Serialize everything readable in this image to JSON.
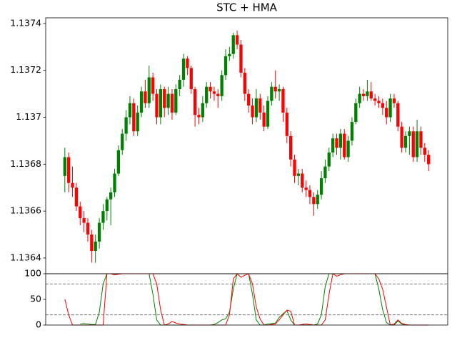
{
  "chart_data": [
    {
      "type": "candlestick",
      "title": "STC + HMA",
      "up_color": "green",
      "down_color": "red",
      "open": [
        1.13675,
        1.13683,
        1.13672,
        1.1367,
        1.13662,
        1.13657,
        1.13655,
        1.1365,
        1.13643,
        1.13647,
        1.13655,
        1.1366,
        1.13665,
        1.13668,
        1.13676,
        1.13686,
        1.13693,
        1.137,
        1.13706,
        1.13694,
        1.13702,
        1.13711,
        1.13706,
        1.13717,
        1.1371,
        1.137,
        1.13712,
        1.13704,
        1.1371,
        1.13702,
        1.13712,
        1.13716,
        1.13725,
        1.13721,
        1.13712,
        1.13701,
        1.137,
        1.13706,
        1.13713,
        1.13711,
        1.1371,
        1.13709,
        1.13718,
        1.13726,
        1.13727,
        1.13735,
        1.13731,
        1.13719,
        1.1371,
        1.13705,
        1.137,
        1.13708,
        1.13702,
        1.13696,
        1.13707,
        1.13713,
        1.13711,
        1.13712,
        1.13702,
        1.13692,
        1.13682,
        1.13675,
        1.13676,
        1.1367,
        1.13669,
        1.13666,
        1.13663,
        1.13667,
        1.13674,
        1.13679,
        1.13685,
        1.13691,
        1.13687,
        1.13693,
        1.13683,
        1.1369,
        1.13698,
        1.13706,
        1.1371,
        1.13709,
        1.13711,
        1.13708,
        1.13707,
        1.13706,
        1.13704,
        1.137,
        1.13708,
        1.13706,
        1.13696,
        1.13687,
        1.13692,
        1.13694,
        1.13683,
        1.13694,
        1.13687,
        1.13684
      ],
      "high": [
        1.13687,
        1.13685,
        1.13679,
        1.13672,
        1.13664,
        1.1366,
        1.13657,
        1.13652,
        1.1365,
        1.13657,
        1.13663,
        1.13666,
        1.1367,
        1.13678,
        1.13688,
        1.13695,
        1.13703,
        1.13709,
        1.13708,
        1.13705,
        1.13713,
        1.13716,
        1.13722,
        1.13719,
        1.13712,
        1.13714,
        1.13713,
        1.13713,
        1.13712,
        1.13714,
        1.13718,
        1.13727,
        1.13726,
        1.13722,
        1.13713,
        1.13704,
        1.13709,
        1.13715,
        1.13715,
        1.13713,
        1.13712,
        1.1372,
        1.13729,
        1.1373,
        1.13736,
        1.13737,
        1.13733,
        1.13721,
        1.13712,
        1.13708,
        1.13712,
        1.1371,
        1.13705,
        1.13709,
        1.13715,
        1.1372,
        1.13714,
        1.13713,
        1.13704,
        1.13694,
        1.13684,
        1.13678,
        1.13678,
        1.13673,
        1.13671,
        1.13668,
        1.13669,
        1.13677,
        1.13682,
        1.13687,
        1.13693,
        1.13693,
        1.13695,
        1.13695,
        1.13692,
        1.137,
        1.13708,
        1.13713,
        1.13712,
        1.13716,
        1.13715,
        1.1371,
        1.13709,
        1.13708,
        1.13707,
        1.1371,
        1.1371,
        1.13707,
        1.13698,
        1.13694,
        1.13696,
        1.13696,
        1.13699,
        1.13696,
        1.13689,
        1.13686
      ],
      "low": [
        1.13668,
        1.13668,
        1.13666,
        1.1366,
        1.13654,
        1.13651,
        1.13647,
        1.13638,
        1.13638,
        1.13644,
        1.13652,
        1.13656,
        1.13654,
        1.13666,
        1.13675,
        1.13684,
        1.1369,
        1.13697,
        1.13692,
        1.13692,
        1.137,
        1.13704,
        1.13704,
        1.13707,
        1.13697,
        1.13697,
        1.137,
        1.13701,
        1.13699,
        1.13701,
        1.13709,
        1.13713,
        1.13718,
        1.1371,
        1.13696,
        1.13697,
        1.13698,
        1.13704,
        1.13708,
        1.13707,
        1.13704,
        1.13707,
        1.13716,
        1.13724,
        1.13725,
        1.13729,
        1.13717,
        1.13707,
        1.13702,
        1.13697,
        1.13698,
        1.13699,
        1.13694,
        1.13695,
        1.13705,
        1.13708,
        1.13707,
        1.13698,
        1.13689,
        1.13679,
        1.13672,
        1.13671,
        1.13668,
        1.13666,
        1.13663,
        1.13658,
        1.13661,
        1.13665,
        1.13672,
        1.13677,
        1.13683,
        1.13684,
        1.13682,
        1.13682,
        1.13681,
        1.13688,
        1.13697,
        1.13704,
        1.13707,
        1.13707,
        1.13707,
        1.13705,
        1.13704,
        1.13701,
        1.13697,
        1.13698,
        1.13704,
        1.13694,
        1.13685,
        1.13685,
        1.13684,
        1.13681,
        1.13681,
        1.13684,
        1.13681,
        1.13677
      ],
      "close": [
        1.13683,
        1.13672,
        1.1367,
        1.13662,
        1.13657,
        1.13655,
        1.1365,
        1.13643,
        1.13647,
        1.13655,
        1.1366,
        1.13665,
        1.13668,
        1.13676,
        1.13686,
        1.13693,
        1.137,
        1.13706,
        1.13694,
        1.13702,
        1.13711,
        1.13706,
        1.13717,
        1.1371,
        1.137,
        1.13712,
        1.13704,
        1.1371,
        1.13702,
        1.13712,
        1.13716,
        1.13725,
        1.13721,
        1.13712,
        1.13701,
        1.137,
        1.13706,
        1.13713,
        1.13711,
        1.1371,
        1.13709,
        1.13718,
        1.13726,
        1.13727,
        1.13735,
        1.13731,
        1.13719,
        1.1371,
        1.13705,
        1.137,
        1.13708,
        1.13702,
        1.13696,
        1.13707,
        1.13713,
        1.13711,
        1.13712,
        1.13702,
        1.13692,
        1.13682,
        1.13675,
        1.13676,
        1.1367,
        1.13669,
        1.13666,
        1.13663,
        1.13667,
        1.13674,
        1.13679,
        1.13685,
        1.13691,
        1.13687,
        1.13693,
        1.13683,
        1.1369,
        1.13698,
        1.13706,
        1.1371,
        1.13709,
        1.13711,
        1.13708,
        1.13707,
        1.13706,
        1.13704,
        1.137,
        1.13708,
        1.13706,
        1.13696,
        1.13687,
        1.13692,
        1.13694,
        1.13683,
        1.13694,
        1.13687,
        1.13684,
        1.1368
      ],
      "xlim": [
        -5,
        100
      ],
      "ylim": [
        1.136333,
        1.137424
      ],
      "yticks": [
        1.1364,
        1.1366,
        1.1368,
        1.137,
        1.1372,
        1.1374
      ]
    },
    {
      "type": "line",
      "xlim": [
        -5,
        100
      ],
      "ylim": [
        0,
        100
      ],
      "yticks": [
        0,
        50,
        100
      ],
      "hlines": [
        80,
        20
      ],
      "hline_color": "gray",
      "series": [
        {
          "color": "green",
          "values": [
            null,
            null,
            null,
            null,
            2,
            3,
            2,
            1,
            1,
            25,
            80,
            100,
            100,
            98,
            100,
            100,
            100,
            100,
            100,
            100,
            100,
            100,
            100,
            60,
            10,
            0,
            0,
            0,
            0,
            0,
            0,
            0,
            0,
            0,
            0,
            0,
            0,
            0,
            0,
            1,
            5,
            10,
            12,
            25,
            70,
            100,
            100,
            100,
            100,
            60,
            10,
            0,
            0,
            2,
            3,
            4,
            15,
            22,
            28,
            10,
            0,
            0,
            0,
            0,
            0,
            0,
            2,
            20,
            75,
            100,
            100,
            100,
            100,
            100,
            100,
            100,
            100,
            100,
            100,
            100,
            100,
            100,
            70,
            30,
            5,
            0,
            0,
            8,
            2,
            0,
            0,
            0,
            0,
            0,
            0,
            0
          ]
        },
        {
          "color": "red",
          "values": [
            50,
            20,
            0,
            0,
            0,
            0,
            0,
            0,
            0,
            0,
            0,
            100,
            100,
            98,
            99,
            100,
            100,
            100,
            100,
            100,
            100,
            100,
            100,
            100,
            80,
            30,
            0,
            2,
            7,
            4,
            2,
            1,
            0,
            0,
            0,
            0,
            0,
            0,
            0,
            0,
            0,
            0,
            0,
            20,
            90,
            100,
            93,
            97,
            100,
            80,
            35,
            12,
            0,
            0,
            1,
            2,
            10,
            20,
            29,
            27,
            0,
            0,
            1,
            2,
            1,
            0,
            0,
            0,
            10,
            60,
            100,
            95,
            98,
            100,
            100,
            100,
            100,
            100,
            100,
            100,
            100,
            100,
            90,
            70,
            35,
            0,
            2,
            10,
            3,
            1,
            0,
            0,
            0,
            0,
            0,
            0
          ]
        }
      ]
    }
  ]
}
